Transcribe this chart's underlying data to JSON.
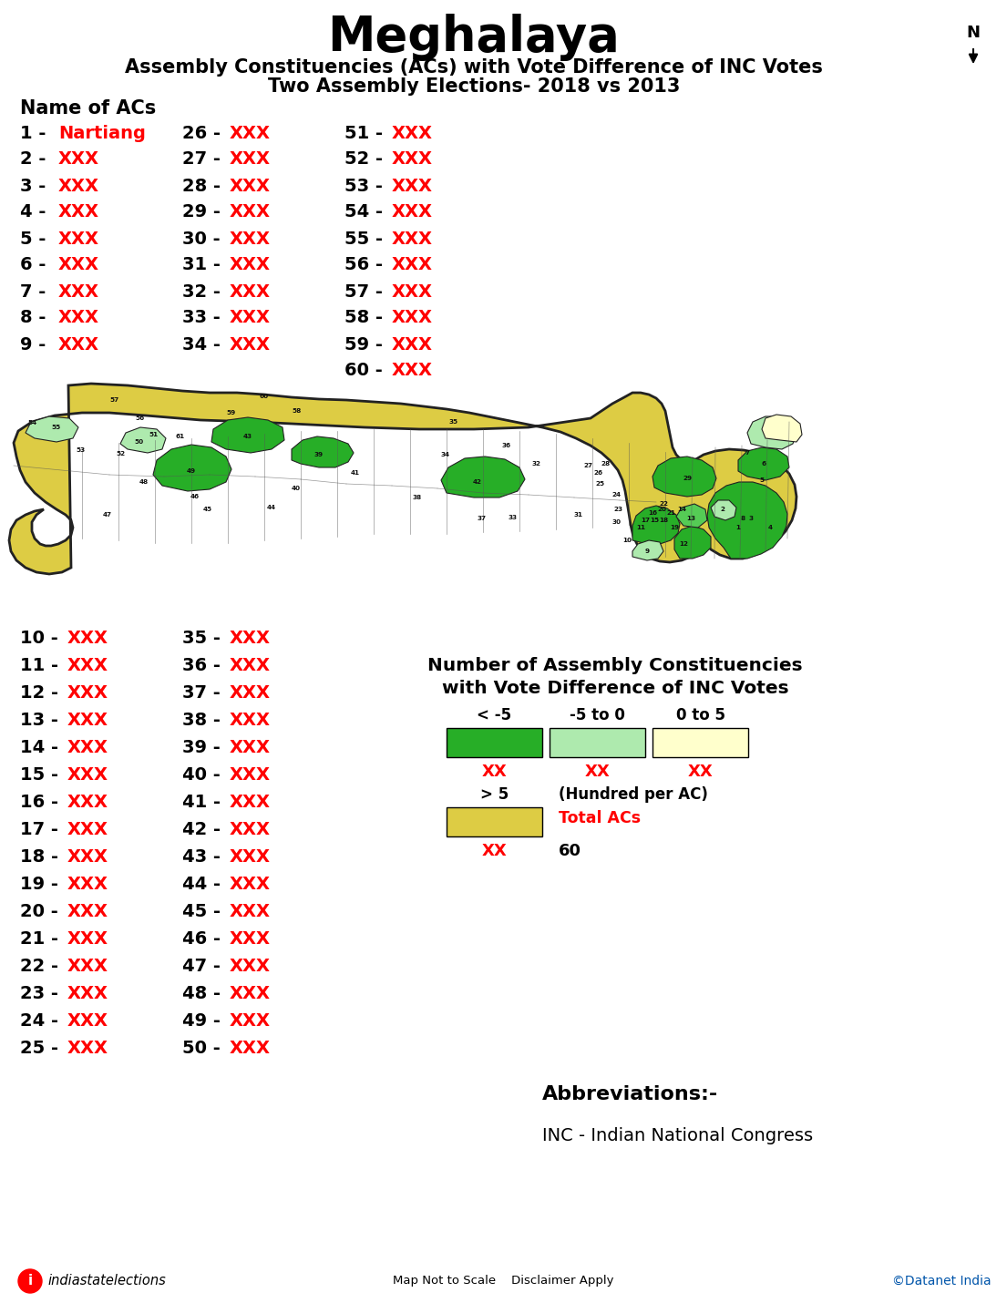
{
  "title": "Meghalaya",
  "subtitle1": "Assembly Constituencies (ACs) with Vote Difference of INC Votes",
  "subtitle2": "Two Assembly Elections- 2018 vs 2013",
  "bg_color": "#FFFFFF",
  "title_fontsize": 38,
  "subtitle_fontsize": 15,
  "name_of_acs_label": "Name of ACs",
  "ac_list_top_col1": [
    "1 - Nartiang",
    "2 - XXX",
    "3 - XXX",
    "4 - XXX",
    "5 - XXX",
    "6 - XXX",
    "7 - XXX",
    "8 - XXX",
    "9 - XXX"
  ],
  "ac_list_top_col2": [
    "26 - XXX",
    "27 - XXX",
    "28 - XXX",
    "29 - XXX",
    "30 - XXX",
    "31 - XXX",
    "32 - XXX",
    "33 - XXX",
    "34 - XXX"
  ],
  "ac_list_top_col3": [
    "51 - XXX",
    "52 - XXX",
    "53 - XXX",
    "54 - XXX",
    "55 - XXX",
    "56 - XXX",
    "57 - XXX",
    "58 - XXX",
    "59 - XXX",
    "60 - XXX"
  ],
  "ac_list_bot_col1": [
    "10 - XXX",
    "11 - XXX",
    "12 - XXX",
    "13 - XXX",
    "14 - XXX",
    "15 - XXX",
    "16 - XXX",
    "17 - XXX",
    "18 - XXX",
    "19 - XXX",
    "20 - XXX",
    "21 - XXX",
    "22 - XXX",
    "23 - XXX",
    "24 - XXX",
    "25 - XXX"
  ],
  "ac_list_bot_col2": [
    "35 - XXX",
    "36 - XXX",
    "37 - XXX",
    "38 - XXX",
    "39 - XXX",
    "40 - XXX",
    "41 - XXX",
    "42 - XXX",
    "43 - XXX",
    "44 - XXX",
    "45 - XXX",
    "46 - XXX",
    "47 - XXX",
    "48 - XXX",
    "49 - XXX",
    "50 - XXX"
  ],
  "legend_title": "Number of Assembly Constituencies\nwith Vote Difference of INC Votes",
  "legend_categories": [
    "< -5",
    "-5 to 0",
    "0 to 5",
    "> 5"
  ],
  "legend_colors": [
    "#27AE27",
    "#AEEAAE",
    "#FFFFCC",
    "#DDCC44"
  ],
  "legend_xx": [
    "XX",
    "XX",
    "XX",
    "XX"
  ],
  "legend_total_label": "Total ACs",
  "legend_total_value": "60",
  "legend_unit": "(Hundred per AC)",
  "abbrev_title": "Abbreviations:-",
  "abbrev_text": "INC - Indian National Congress",
  "footer_left": "indiastatelections",
  "footer_center": "Map Not to Scale    Disclaimer Apply",
  "footer_right": "©Datanet India",
  "map_yellow": "#DDCC44",
  "map_green_dark": "#27AE27",
  "map_green_med": "#55CC55",
  "map_green_light": "#AEEAAE",
  "map_green_very_light": "#CCFFCC",
  "map_beige": "#FFFFCC",
  "map_cream": "#F5F5DC",
  "map_outline": "#222222",
  "map_inner": "#555555"
}
